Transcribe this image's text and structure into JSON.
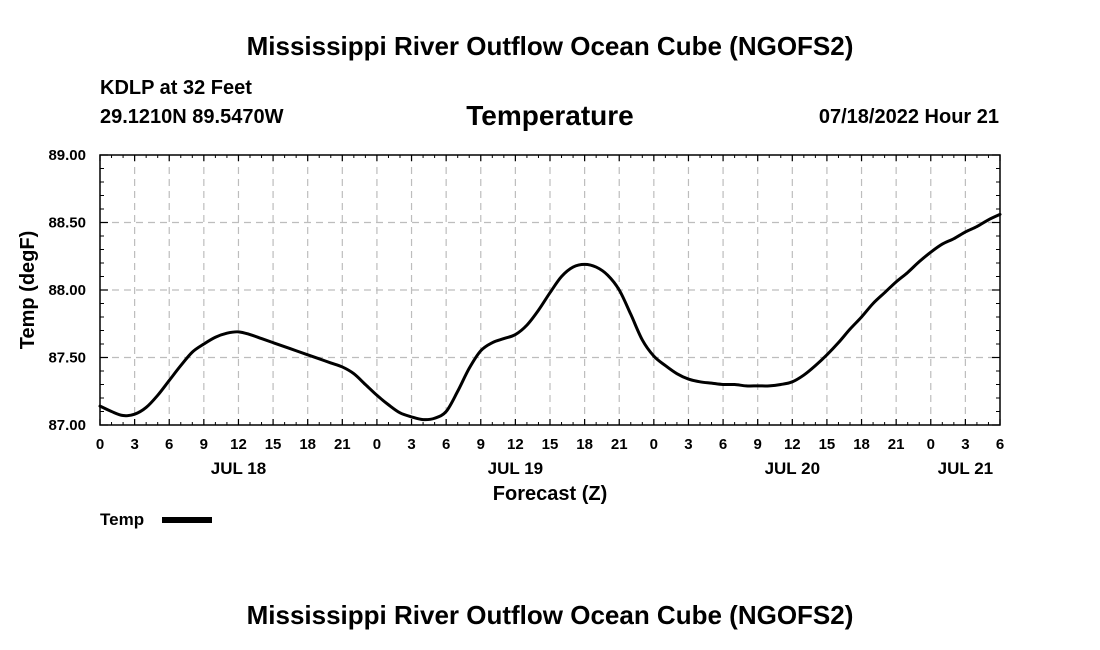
{
  "page": {
    "top_title": "Mississippi River Outflow Ocean Cube (NGOFS2)",
    "bottom_title": "Mississippi River Outflow Ocean Cube (NGOFS2)",
    "station": "KDLP at 32 Feet",
    "location": "29.1210N  89.5470W",
    "variable": "Temperature",
    "datetime": "07/18/2022 Hour 21"
  },
  "chart_data": {
    "type": "line",
    "title": "Temperature",
    "xlabel": "Forecast (Z)",
    "ylabel": "Temp (degF)",
    "xlim": [
      0,
      78
    ],
    "ylim": [
      87.0,
      89.0
    ],
    "grid": true,
    "x_tick_hours": [
      0,
      3,
      6,
      9,
      12,
      15,
      18,
      21,
      24,
      27,
      30,
      33,
      36,
      39,
      42,
      45,
      48,
      51,
      54,
      57,
      60,
      63,
      66,
      69,
      72,
      75,
      78
    ],
    "x_tick_labels": [
      "0",
      "3",
      "6",
      "9",
      "12",
      "15",
      "18",
      "21",
      "0",
      "3",
      "6",
      "9",
      "12",
      "15",
      "18",
      "21",
      "0",
      "3",
      "6",
      "9",
      "12",
      "15",
      "18",
      "21",
      "0",
      "3",
      "6"
    ],
    "y_ticks": [
      87.0,
      87.5,
      88.0,
      88.5,
      89.0
    ],
    "y_tick_labels": [
      "87.00",
      "87.50",
      "88.00",
      "88.50",
      "89.00"
    ],
    "day_labels": [
      {
        "hour": 12,
        "label": "JUL 18"
      },
      {
        "hour": 36,
        "label": "JUL 19"
      },
      {
        "hour": 60,
        "label": "JUL 20"
      },
      {
        "hour": 75,
        "label": "JUL 21"
      }
    ],
    "legend": {
      "label": "Temp",
      "placement": "bottom-left"
    },
    "series": [
      {
        "name": "Temp",
        "x": [
          0,
          1,
          2,
          3,
          4,
          5,
          6,
          7,
          8,
          9,
          10,
          11,
          12,
          13,
          14,
          15,
          16,
          17,
          18,
          19,
          20,
          21,
          22,
          23,
          24,
          25,
          26,
          27,
          28,
          29,
          30,
          31,
          32,
          33,
          34,
          35,
          36,
          37,
          38,
          39,
          40,
          41,
          42,
          43,
          44,
          45,
          46,
          47,
          48,
          49,
          50,
          51,
          52,
          53,
          54,
          55,
          56,
          57,
          58,
          59,
          60,
          61,
          62,
          63,
          64,
          65,
          66,
          67,
          68,
          69,
          70,
          71,
          72,
          73,
          74,
          75,
          76,
          77,
          78
        ],
        "values": [
          87.14,
          87.1,
          87.07,
          87.08,
          87.13,
          87.22,
          87.33,
          87.44,
          87.54,
          87.6,
          87.65,
          87.68,
          87.69,
          87.67,
          87.64,
          87.61,
          87.58,
          87.55,
          87.52,
          87.49,
          87.46,
          87.43,
          87.38,
          87.3,
          87.22,
          87.15,
          87.09,
          87.06,
          87.04,
          87.05,
          87.1,
          87.25,
          87.42,
          87.55,
          87.61,
          87.64,
          87.67,
          87.74,
          87.85,
          87.98,
          88.1,
          88.17,
          88.19,
          88.17,
          88.11,
          88.0,
          87.82,
          87.63,
          87.51,
          87.44,
          87.38,
          87.34,
          87.32,
          87.31,
          87.3,
          87.3,
          87.29,
          87.29,
          87.29,
          87.3,
          87.32,
          87.37,
          87.44,
          87.52,
          87.61,
          87.71,
          87.8,
          87.9,
          87.98,
          88.06,
          88.13,
          88.21,
          88.28,
          88.34,
          88.38,
          88.43,
          88.47,
          88.52,
          88.56
        ]
      }
    ]
  }
}
